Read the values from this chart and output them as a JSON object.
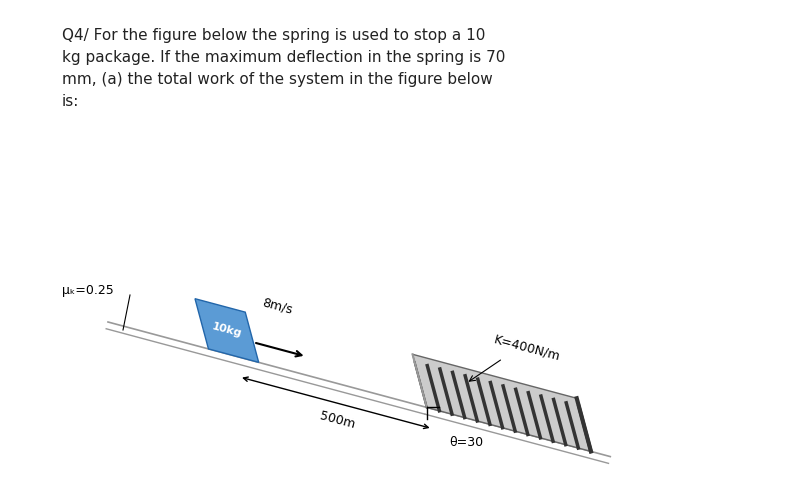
{
  "background_color": "#ffffff",
  "question_text_lines": [
    "Q4/ For the figure below the spring is used to stop a 10",
    "kg package. If the maximum deflection in the spring is 70",
    "mm, (a) the total work of the system in the figure below",
    "is:"
  ],
  "mu_label": "μₖ=0.25",
  "velocity_label": "8m/s",
  "mass_label": "10kg",
  "spring_label": "K=400N/m",
  "distance_label": "500m",
  "angle_label": "θ=30",
  "box_color": "#5b9bd5",
  "box_text_color": "#ffffff",
  "ramp_color": "#999999",
  "spring_coil_color": "#444444",
  "wall_color": "#999999",
  "line_color": "#555555"
}
